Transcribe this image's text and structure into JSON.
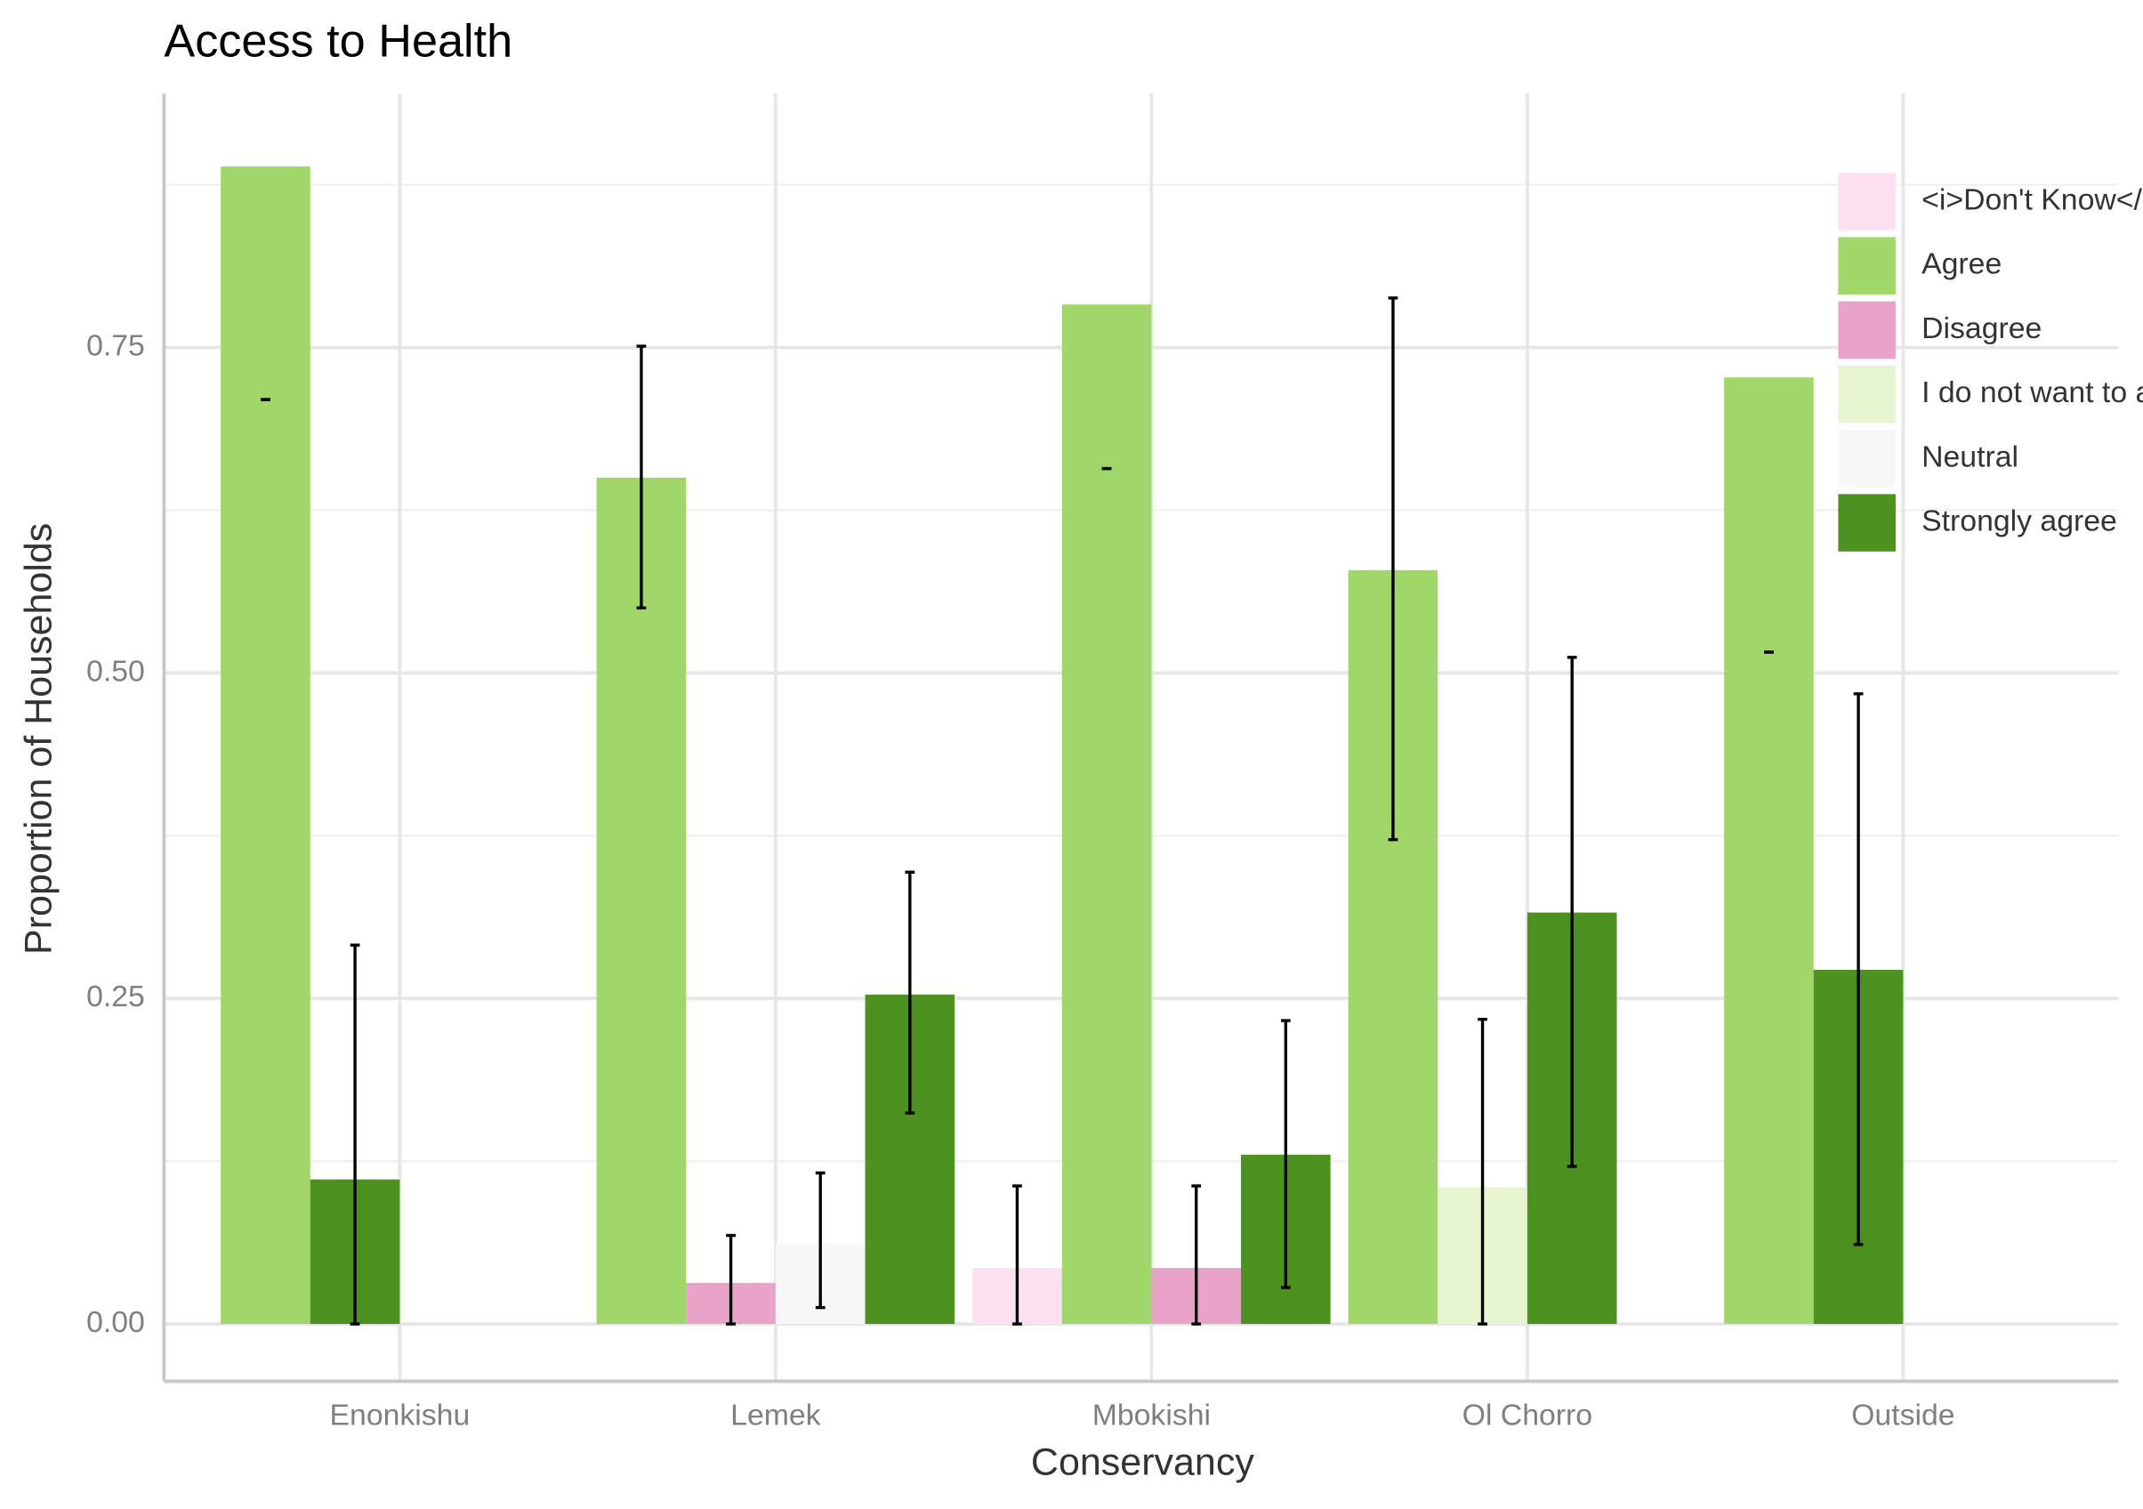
{
  "chart_data": {
    "type": "bar",
    "title": "Access to Health",
    "x_label": "Conservancy",
    "y_label": "Proportion of Households",
    "categories": [
      "Enonkishu",
      "Lemek",
      "Mbokishi",
      "Ol Chorro",
      "Outside"
    ],
    "series": [
      {
        "name": "<i>Don't Know</i>",
        "color": "#fde0ef",
        "values": [
          null,
          null,
          0.043,
          null,
          null
        ],
        "error_low": [
          null,
          null,
          0,
          null,
          null
        ],
        "error_high": [
          null,
          null,
          0.106,
          null,
          null
        ]
      },
      {
        "name": "Agree",
        "color": "#a1d76a",
        "values": [
          0.889,
          0.65,
          0.783,
          0.579,
          0.727
        ],
        "error_low": [
          0.71,
          0.55,
          0.657,
          0.372,
          0.516
        ],
        "error_high": [
          0.71,
          0.751,
          0.657,
          0.788,
          0.516
        ]
      },
      {
        "name": "Disagree",
        "color": "#e9a3c9",
        "values": [
          null,
          0.0315,
          0.043,
          null,
          null
        ],
        "error_low": [
          null,
          0,
          0,
          null,
          null
        ],
        "error_high": [
          null,
          0.068,
          0.106,
          null,
          null
        ]
      },
      {
        "name": "I do not want to answer",
        "color": "#e6f5d0",
        "values": [
          null,
          null,
          null,
          0.105,
          null
        ],
        "error_low": [
          null,
          null,
          null,
          0,
          null
        ],
        "error_high": [
          null,
          null,
          null,
          0.234,
          null
        ]
      },
      {
        "name": "Neutral",
        "color": "#f7f7f7",
        "values": [
          null,
          0.062,
          null,
          null,
          null
        ],
        "error_low": [
          null,
          0.0126,
          null,
          null,
          null
        ],
        "error_high": [
          null,
          0.116,
          null,
          null,
          null
        ]
      },
      {
        "name": "Strongly agree",
        "color": "#4d9221",
        "values": [
          0.111,
          0.253,
          0.13,
          0.316,
          0.272
        ],
        "error_low": [
          0,
          0.162,
          0.028,
          0.121,
          0.061
        ],
        "error_high": [
          0.291,
          0.347,
          0.233,
          0.512,
          0.484
        ]
      }
    ],
    "ylim": [
      -0.044,
      0.945
    ],
    "yticks": [
      {
        "value": 0,
        "label": "0.00"
      },
      {
        "value": 0.25,
        "label": "0.25"
      },
      {
        "value": 0.5,
        "label": "0.50"
      },
      {
        "value": 0.75,
        "label": "0.75"
      }
    ],
    "minor_yticks": [
      0.125,
      0.375,
      0.625,
      0.875
    ],
    "grid": true,
    "legend": "right"
  }
}
